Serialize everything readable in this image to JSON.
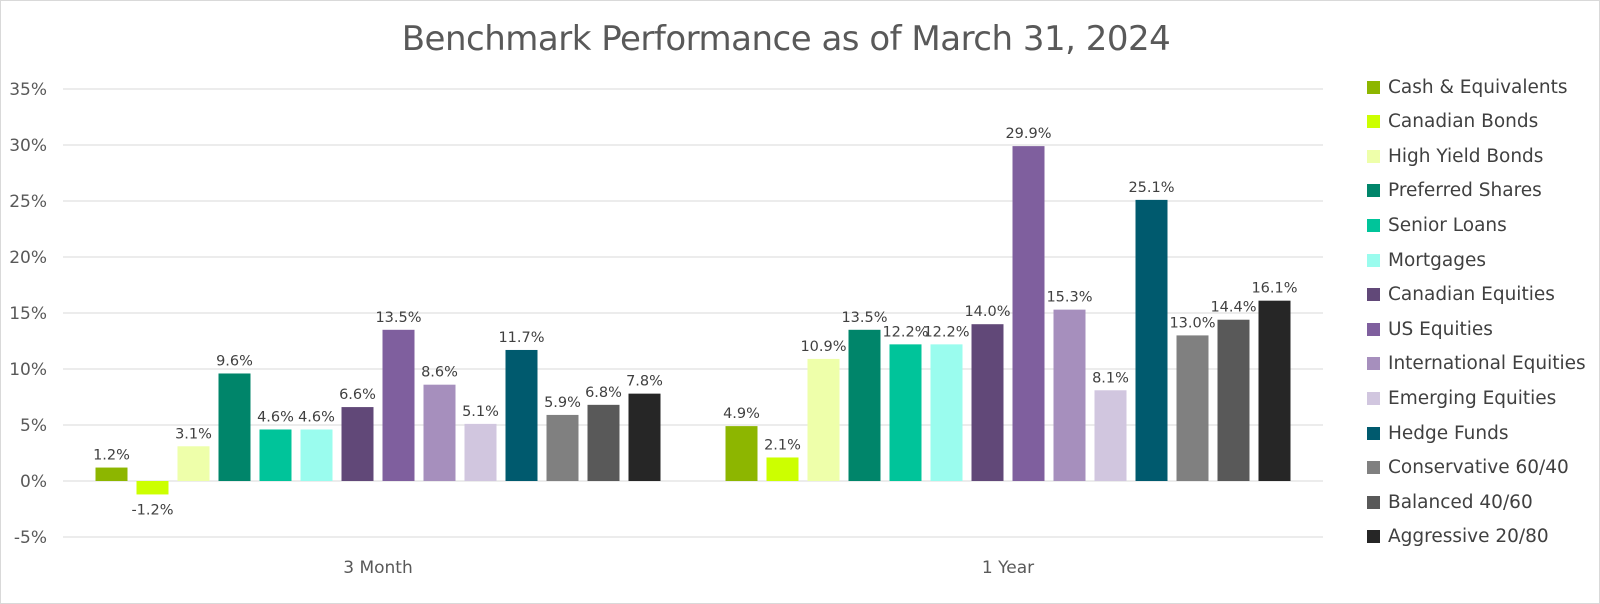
{
  "chart_data": {
    "type": "bar",
    "title": "Benchmark Performance as of March 31, 2024",
    "categories": [
      "3 Month",
      "1 Year"
    ],
    "ylim": [
      -5,
      35
    ],
    "yticks": [
      -5,
      0,
      5,
      10,
      15,
      20,
      25,
      30,
      35
    ],
    "ytick_labels": [
      "-5%",
      "0%",
      "5%",
      "10%",
      "15%",
      "20%",
      "25%",
      "30%",
      "35%"
    ],
    "grid": true,
    "legend_position": "right",
    "series": [
      {
        "name": "Cash & Equivalents",
        "color": "#8db600",
        "values": [
          1.2,
          4.9
        ],
        "labels": [
          "1.2%",
          "4.9%"
        ]
      },
      {
        "name": "Canadian Bonds",
        "color": "#ccff00",
        "values": [
          -1.2,
          2.1
        ],
        "labels": [
          "-1.2%",
          "2.1%"
        ]
      },
      {
        "name": "High Yield Bonds",
        "color": "#eeffaa",
        "values": [
          3.1,
          10.9
        ],
        "labels": [
          "3.1%",
          "10.9%"
        ]
      },
      {
        "name": "Preferred Shares",
        "color": "#00856a",
        "values": [
          9.6,
          13.5
        ],
        "labels": [
          "9.6%",
          "13.5%"
        ]
      },
      {
        "name": "Senior Loans",
        "color": "#00c49a",
        "values": [
          4.6,
          12.2
        ],
        "labels": [
          "4.6%",
          "12.2%"
        ]
      },
      {
        "name": "Mortgages",
        "color": "#9afcee",
        "values": [
          4.6,
          12.2
        ],
        "labels": [
          "4.6%",
          "12.2%"
        ]
      },
      {
        "name": "Canadian Equities",
        "color": "#614878",
        "values": [
          6.6,
          14.0
        ],
        "labels": [
          "6.6%",
          "14.0%"
        ]
      },
      {
        "name": "US Equities",
        "color": "#7f5f9e",
        "values": [
          13.5,
          29.9
        ],
        "labels": [
          "13.5%",
          "29.9%"
        ]
      },
      {
        "name": "International Equities",
        "color": "#a68fbd",
        "values": [
          8.6,
          15.3
        ],
        "labels": [
          "8.6%",
          "15.3%"
        ]
      },
      {
        "name": "Emerging Equities",
        "color": "#d1c6df",
        "values": [
          5.1,
          8.1
        ],
        "labels": [
          "5.1%",
          "8.1%"
        ]
      },
      {
        "name": "Hedge Funds",
        "color": "#005a6e",
        "values": [
          11.7,
          25.1
        ],
        "labels": [
          "11.7%",
          "25.1%"
        ]
      },
      {
        "name": "Conservative 60/40",
        "color": "#808080",
        "values": [
          5.9,
          13.0
        ],
        "labels": [
          "5.9%",
          "13.0%"
        ]
      },
      {
        "name": "Balanced 40/60",
        "color": "#595959",
        "values": [
          6.8,
          14.4
        ],
        "labels": [
          "6.8%",
          "14.4%"
        ]
      },
      {
        "name": "Aggressive 20/80",
        "color": "#262626",
        "values": [
          7.8,
          16.1
        ],
        "labels": [
          "7.8%",
          "16.1%"
        ]
      }
    ]
  }
}
